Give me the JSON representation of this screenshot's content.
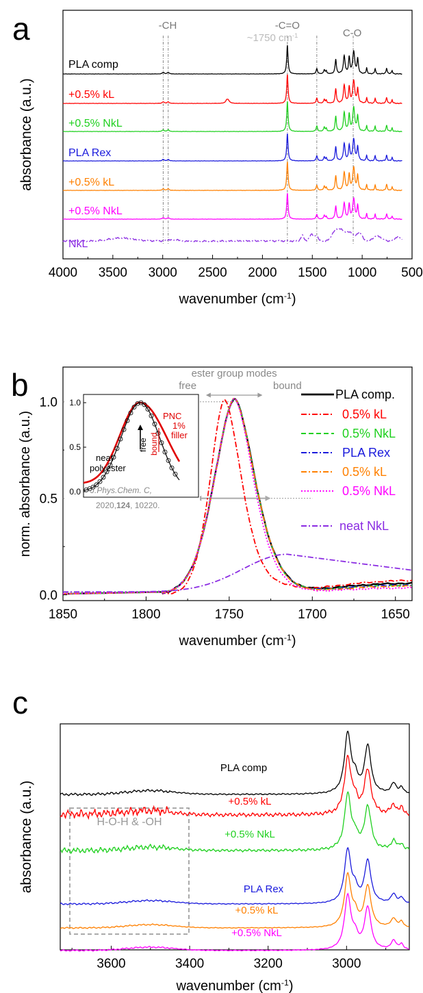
{
  "chart_data": [
    {
      "panel": "a",
      "type": "line",
      "xlabel": "wavenumber (cm",
      "xlabel_sup": "-1",
      "xlabel_close": ")",
      "ylabel": "absorbance (a.u.)",
      "xlim": [
        4000,
        500
      ],
      "xticks": [
        "4000",
        "3500",
        "3000",
        "2500",
        "2000",
        "1500",
        "1000",
        "500"
      ],
      "annotations": [
        {
          "text": "-CH",
          "x": 2950
        },
        {
          "text": "~1750 cm",
          "sup": "-1",
          "x": 1900
        },
        {
          "text": "-C=O",
          "x": 1750
        },
        {
          "text": "C-O",
          "x": 1100
        }
      ],
      "vlines": [
        2995,
        2945,
        1750,
        1455,
        1090
      ],
      "series": [
        {
          "name": "PLA comp",
          "color": "#000000",
          "dash": "solid"
        },
        {
          "name": "+0.5% kL",
          "color": "#ff0000",
          "dash": "solid"
        },
        {
          "name": "+0.5% NkL",
          "color": "#1fd01f",
          "dash": "solid"
        },
        {
          "name": "PLA Rex",
          "color": "#1a1adc",
          "dash": "solid"
        },
        {
          "name": "+0.5% kL",
          "color": "#ff8000",
          "dash": "solid"
        },
        {
          "name": "+0.5% NkL",
          "color": "#ff00ff",
          "dash": "solid"
        },
        {
          "name": "NkL",
          "color": "#8a2be2",
          "dash": "dashdot"
        }
      ]
    },
    {
      "panel": "b",
      "type": "line",
      "xlabel": "wavenumber (cm",
      "xlabel_sup": "-1",
      "xlabel_close": ")",
      "ylabel": "norm. absorbance (a.u.)",
      "xlim": [
        1850,
        1640
      ],
      "ylim": [
        -0.03,
        1.18
      ],
      "xticks": [
        1850,
        1800,
        1750,
        1700,
        1650
      ],
      "yticks": [
        "0.0",
        "0.5",
        "1.0"
      ],
      "header": {
        "title": "ester group modes",
        "left": "free",
        "right": "bound"
      },
      "series": [
        {
          "name": "PLA comp.",
          "color": "#000000",
          "dash": "solid",
          "center": 1747,
          "wl": 14,
          "wr": 14
        },
        {
          "name": "0.5% kL",
          "color": "#ff0000",
          "dash": "dashdot",
          "center": 1753,
          "wl": 10,
          "wr": 12
        },
        {
          "name": "0.5% NkL",
          "color": "#1fd01f",
          "dash": "dashed",
          "center": 1747,
          "wl": 14,
          "wr": 14
        },
        {
          "name": "PLA Rex",
          "color": "#1a1adc",
          "dash": "dashdot",
          "center": 1747,
          "wl": 14,
          "wr": 14
        },
        {
          "name": "0.5% kL",
          "color": "#ff8000",
          "dash": "dashdot",
          "center": 1747,
          "wl": 14,
          "wr": 14
        },
        {
          "name": "0.5% NkL",
          "color": "#ff00ff",
          "dash": "dotted",
          "center": 1747,
          "wl": 14,
          "wr": 13
        },
        {
          "name": "neat NkL",
          "color": "#8a2be2",
          "dash": "dashdot",
          "center": 1715,
          "peak": 0.21
        }
      ],
      "inset": {
        "labels": [
          "PNC",
          "1%",
          "filler",
          "free",
          "bound",
          "neat",
          "polyester"
        ],
        "citation_1": "J.Phys.Chem. C,",
        "citation_2": "2020,",
        "citation_bold": "124",
        "citation_3": ", 10220.",
        "yticks": [
          "0.0",
          "0.5",
          "1.0"
        ]
      }
    },
    {
      "panel": "c",
      "type": "line",
      "xlabel": "wavenumber (cm",
      "xlabel_sup": "-1",
      "xlabel_close": ")",
      "ylabel": "absorbance (a.u.)",
      "xlim": [
        3730,
        2840
      ],
      "xticks": [
        3600,
        3400,
        3200,
        3000
      ],
      "box_label": "H-O-H & -OH",
      "series": [
        {
          "name": "PLA comp",
          "color": "#000000"
        },
        {
          "name": "+0.5% kL",
          "color": "#ff0000"
        },
        {
          "name": "+0.5% NkL",
          "color": "#1fd01f"
        },
        {
          "name": "PLA Rex",
          "color": "#1a1adc"
        },
        {
          "name": "+0.5% kL",
          "color": "#ff8000"
        },
        {
          "name": "+0.5% NkL",
          "color": "#ff00ff"
        }
      ]
    }
  ]
}
